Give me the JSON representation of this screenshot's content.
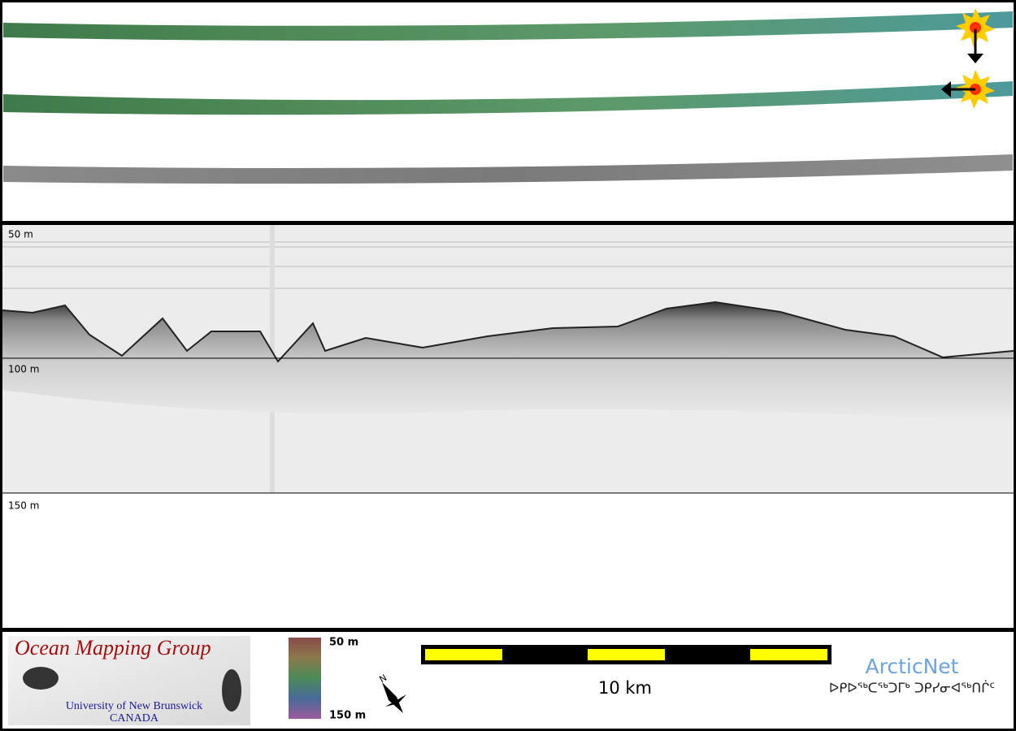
{
  "profile": {
    "depth_labels": [
      "50 m",
      "100 m",
      "150 m"
    ]
  },
  "footer": {
    "logo": {
      "title": "Ocean Mapping Group",
      "university": "University of New Brunswick",
      "country": "CANADA"
    },
    "colorbar": {
      "top": "50 m",
      "bottom": "150 m"
    },
    "north": "N",
    "scale": "10 km",
    "partner": {
      "name": "ArcticNet",
      "syllabics": "ᐅᑭᐅᖅᑕᖅᑐᒥᒃ ᑐᑭᓯᓂᐊᖅᑎᒌᑦ"
    }
  }
}
